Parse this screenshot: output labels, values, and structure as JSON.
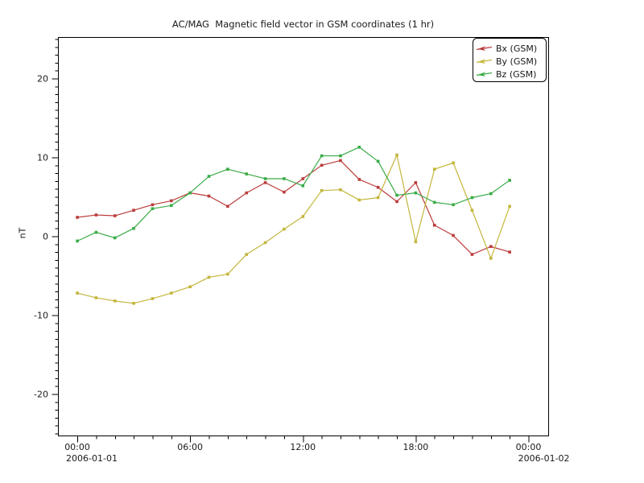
{
  "chart_data": {
    "type": "line",
    "title": "AC/MAG  Magnetic field vector in GSM coordinates (1 hr)",
    "ylabel": "nT",
    "x_hours": [
      0,
      1,
      2,
      3,
      4,
      5,
      6,
      7,
      8,
      9,
      10,
      11,
      12,
      13,
      14,
      15,
      16,
      17,
      18,
      19,
      20,
      21,
      22,
      23
    ],
    "x_axis": {
      "major_ticks": [
        {
          "hour": 0,
          "label": "00:00"
        },
        {
          "hour": 6,
          "label": "06:00"
        },
        {
          "hour": 12,
          "label": "12:00"
        },
        {
          "hour": 18,
          "label": "18:00"
        },
        {
          "hour": 24,
          "label": "00:00"
        }
      ],
      "minor_tick_step_hours": 1,
      "date_labels": [
        {
          "label": "2006-01-01",
          "x_hour": -0.6
        },
        {
          "label": "2006-01-02",
          "x_hour": 23.45
        }
      ],
      "xlim_hours": [
        -1.03,
        25.05
      ]
    },
    "y_axis": {
      "major_ticks": [
        -20,
        -10,
        0,
        10,
        20
      ],
      "minor_tick_step": 1,
      "ylim": [
        -25.26,
        25.26
      ]
    },
    "grid": "off",
    "legend_position": "top-right",
    "series": [
      {
        "name": "Bx (GSM)",
        "color": "#bc3c3c",
        "values": [
          2.4,
          2.7,
          2.6,
          3.3,
          4.0,
          4.5,
          5.5,
          5.1,
          3.8,
          5.5,
          6.8,
          5.6,
          7.3,
          9.0,
          9.6,
          7.2,
          6.2,
          4.4,
          6.8,
          1.4,
          0.1,
          -2.3,
          -1.3,
          -2.0
        ]
      },
      {
        "name": "By (GSM)",
        "color": "#c4b63c",
        "values": [
          -7.2,
          -7.8,
          -8.2,
          -8.5,
          -7.9,
          -7.2,
          -6.4,
          -5.2,
          -4.8,
          -2.3,
          -0.8,
          0.9,
          2.5,
          5.8,
          5.9,
          4.6,
          4.9,
          10.3,
          -0.7,
          8.5,
          9.3,
          3.3,
          -2.8,
          3.8
        ]
      },
      {
        "name": "Bz (GSM)",
        "color": "#3aab47",
        "values": [
          -0.6,
          0.5,
          -0.2,
          1.0,
          3.5,
          3.9,
          5.5,
          7.6,
          8.5,
          7.9,
          7.3,
          7.3,
          6.4,
          10.2,
          10.2,
          11.3,
          9.5,
          5.2,
          5.5,
          4.3,
          4.0,
          4.9,
          5.4,
          7.1
        ]
      }
    ]
  }
}
